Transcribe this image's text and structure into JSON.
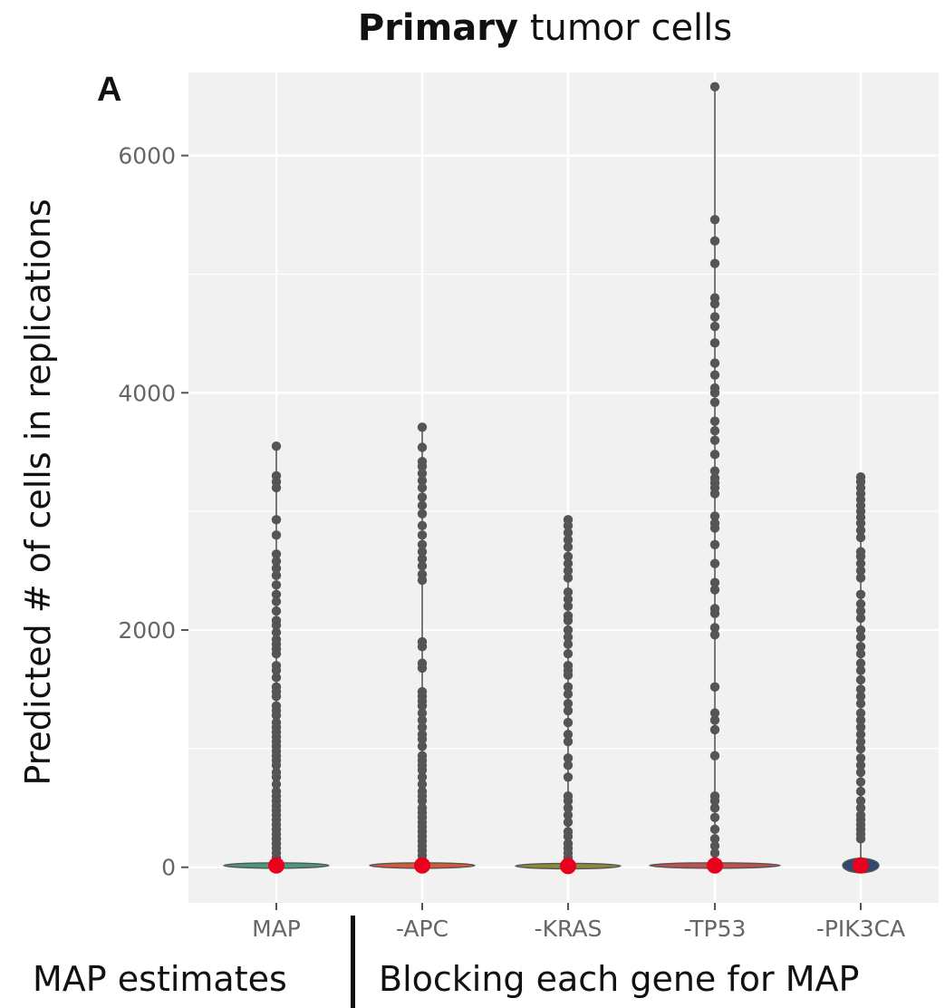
{
  "figure": {
    "title_bold": "Primary",
    "title_rest": " tumor cells",
    "panel_letter": "A",
    "caption_left": "MAP estimates",
    "caption_right": "Blocking each gene for MAP"
  },
  "colors": {
    "panel_bg": "#f0f1f0",
    "grid": "#ffffff",
    "points": "#555555",
    "map_point": "#e8001c"
  },
  "chart_data": {
    "type": "violin",
    "ylabel": "Predicted # of cells in replications",
    "ylim": [
      -300,
      6700
    ],
    "yticks": [
      0,
      2000,
      4000,
      6000
    ],
    "ytick_labels": [
      "0",
      "2000",
      "4000",
      "6000"
    ],
    "categories": [
      "MAP",
      "-APC",
      "-KRAS",
      "-TP53",
      "-PIK3CA"
    ],
    "map_estimates": [
      15,
      15,
      10,
      15,
      15
    ],
    "max_values": [
      3550,
      3710,
      2930,
      6580,
      3290
    ],
    "outliers": [
      [
        3550,
        3300,
        3250,
        3200,
        2930,
        2800,
        2640,
        2580,
        2520,
        2460,
        2380,
        2300,
        2240,
        2160,
        2080,
        2040,
        1980,
        1920,
        1880,
        1840,
        1800,
        1700,
        1660,
        1600,
        1520,
        1480,
        1440,
        1360,
        1320,
        1280,
        1220,
        1180,
        1140,
        1100,
        1060,
        1020,
        980,
        940,
        900,
        860,
        800,
        760,
        700,
        640,
        600,
        560,
        520,
        480,
        440,
        400,
        360,
        320,
        280,
        240,
        200,
        160,
        120,
        80
      ],
      [
        3710,
        3540,
        3420,
        3380,
        3320,
        3260,
        3200,
        3120,
        3050,
        2980,
        2880,
        2800,
        2720,
        2660,
        2600,
        2540,
        2470,
        2420,
        1900,
        1860,
        1720,
        1680,
        1480,
        1440,
        1400,
        1360,
        1300,
        1240,
        1180,
        1120,
        1080,
        1020,
        940,
        900,
        860,
        820,
        760,
        700,
        640,
        600,
        560,
        500,
        460,
        420,
        380,
        340,
        300,
        260,
        220,
        180,
        140,
        100,
        60
      ],
      [
        2930,
        2880,
        2820,
        2760,
        2700,
        2620,
        2560,
        2500,
        2440,
        2320,
        2260,
        2200,
        2120,
        2080,
        2000,
        1940,
        1880,
        1800,
        1700,
        1660,
        1620,
        1520,
        1460,
        1380,
        1320,
        1220,
        1120,
        1060,
        920,
        860,
        760,
        600,
        560,
        500,
        440,
        380,
        300,
        260,
        200,
        160,
        120,
        80
      ],
      [
        6580,
        5460,
        5280,
        5090,
        4800,
        4750,
        4640,
        4560,
        4420,
        4250,
        4150,
        4040,
        4000,
        3920,
        3760,
        3680,
        3600,
        3480,
        3340,
        3280,
        3240,
        3200,
        3150,
        2960,
        2900,
        2860,
        2720,
        2560,
        2400,
        2340,
        2180,
        2140,
        2020,
        1960,
        1520,
        1300,
        1240,
        1160,
        940,
        600,
        560,
        500,
        420,
        320,
        240,
        180,
        120
      ],
      [
        3290,
        3250,
        3200,
        3150,
        3100,
        3050,
        3000,
        2950,
        2900,
        2840,
        2780,
        2660,
        2620,
        2560,
        2500,
        2440,
        2300,
        2220,
        2160,
        2100,
        2000,
        1940,
        1860,
        1800,
        1720,
        1660,
        1580,
        1500,
        1440,
        1380,
        1300,
        1240,
        1180,
        1120,
        1060,
        1000,
        920,
        860,
        800,
        720,
        640,
        560,
        500,
        440,
        400,
        360,
        320,
        280,
        240
      ]
    ],
    "violin_fills": [
      "#4a9a7a",
      "#d8583a",
      "#8a8a3a",
      "#c05050",
      "#2e4a6e"
    ],
    "grid": true
  }
}
